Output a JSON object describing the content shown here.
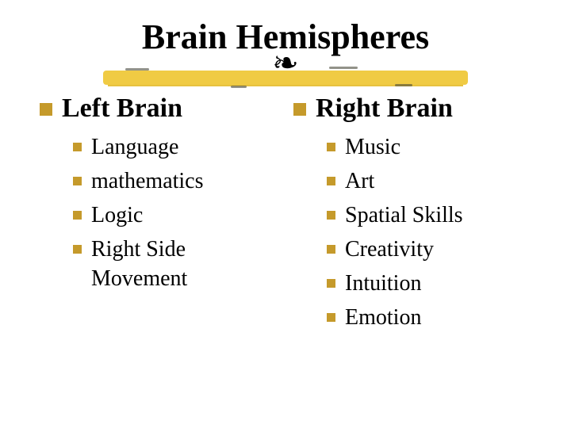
{
  "title": "Brain Hemispheres",
  "flourish_glyph": "❧",
  "bullet_color": "#c59a2b",
  "brush_underline_color": "#f0c93b",
  "text_color": "#000000",
  "background_color": "#ffffff",
  "font_family": "Times New Roman",
  "title_fontsize_pt": 33,
  "heading_fontsize_pt": 26,
  "item_fontsize_pt": 21,
  "left": {
    "heading": "Left Brain",
    "items": [
      "Language",
      "mathematics",
      "Logic",
      "Right Side Movement"
    ]
  },
  "right": {
    "heading": "Right Brain",
    "items": [
      "Music",
      "Art",
      "Spatial Skills",
      "Creativity",
      "Intuition",
      "Emotion"
    ]
  }
}
